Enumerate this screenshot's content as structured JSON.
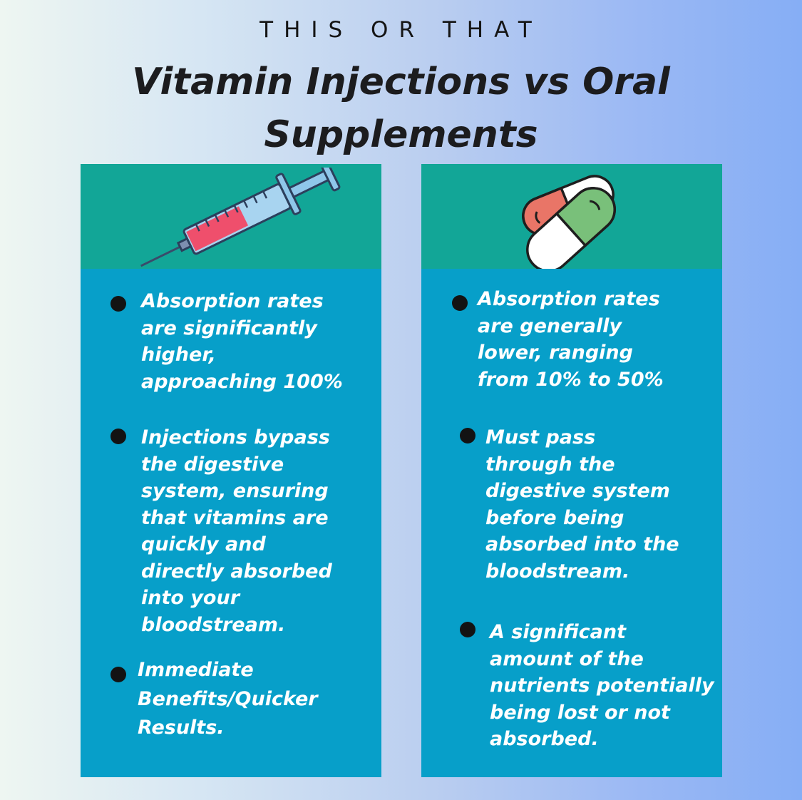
{
  "header": {
    "eyebrow": "THIS OR THAT",
    "title": "Vitamin Injections vs Oral\nSupplements"
  },
  "injections": {
    "icon": "syringe-icon",
    "bullets": [
      "Absorption rates\nare significantly\nhigher,\napproaching 100%",
      "Injections bypass\nthe digestive\nsystem, ensuring\nthat vitamins are\nquickly and\ndirectly absorbed\ninto your\nbloodstream.",
      "Immediate\nBenefits/Quicker\nResults."
    ]
  },
  "oral": {
    "icon": "pills-icon",
    "bullets": [
      "Absorption rates\nare generally\nlower, ranging\nfrom 10% to 50%",
      "Must pass\nthrough the\ndigestive system\nbefore being\nabsorbed into the\nbloodstream.",
      "A significant\namount of the\nnutrients potentially\nbeing lost or not\nabsorbed."
    ]
  },
  "colors": {
    "card_body": "#079fc9",
    "card_header": "#12a697",
    "text": "#ffffff"
  }
}
